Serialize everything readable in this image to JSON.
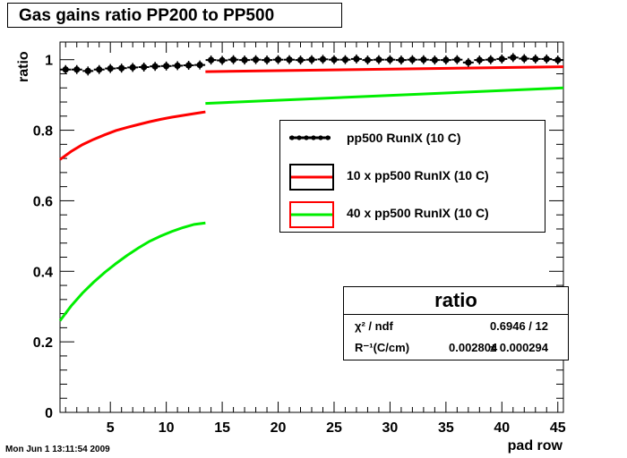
{
  "chart_data": {
    "type": "line",
    "title": "Gas gains ratio PP200 to PP500",
    "xlabel": "pad row",
    "ylabel": "ratio",
    "xlim": [
      0.5,
      45.5
    ],
    "ylim": [
      0,
      1.05
    ],
    "xticks": [
      5,
      10,
      15,
      20,
      25,
      30,
      35,
      40,
      45
    ],
    "yticks": [
      0,
      0.2,
      0.4,
      0.6,
      0.8,
      1
    ],
    "ytick_labels": [
      "0",
      "0.2",
      "0.4",
      "0.6",
      "0.8",
      "1"
    ],
    "colors": {
      "data": "#000000",
      "fit1": "#ff0000",
      "fit2": "#00ee00"
    },
    "series": [
      {
        "name": "pp500 RunIX (10 C)",
        "style": "markers-with-errors",
        "x": [
          1,
          2,
          3,
          4,
          5,
          6,
          7,
          8,
          9,
          10,
          11,
          12,
          13,
          14,
          15,
          16,
          17,
          18,
          19,
          20,
          21,
          22,
          23,
          24,
          25,
          26,
          27,
          28,
          29,
          30,
          31,
          32,
          33,
          34,
          35,
          36,
          37,
          38,
          39,
          40,
          41,
          42,
          43,
          44,
          45
        ],
        "y": [
          0.972,
          0.972,
          0.968,
          0.972,
          0.975,
          0.976,
          0.978,
          0.979,
          0.981,
          0.982,
          0.983,
          0.984,
          0.985,
          0.999,
          0.998,
          1.0,
          0.999,
          1.0,
          0.999,
          1.0,
          1.0,
          0.999,
          1.0,
          1.001,
          1.0,
          1.0,
          1.002,
          0.999,
          1.0,
          1.0,
          0.999,
          1.0,
          1.0,
          0.999,
          0.999,
          1.0,
          0.992,
          0.999,
          1.0,
          1.002,
          1.006,
          1.003,
          1.002,
          1.002,
          0.999
        ]
      },
      {
        "name": "10 x pp500 RunIX (10 C)",
        "style": "line",
        "segments": [
          {
            "x": [
              0.5,
              1.5,
              2.5,
              3.5,
              4.5,
              5.5,
              6.5,
              7.5,
              8.5,
              9.5,
              10.5,
              11.5,
              12.5,
              13.5
            ],
            "y": [
              0.717,
              0.74,
              0.759,
              0.774,
              0.787,
              0.799,
              0.808,
              0.816,
              0.824,
              0.831,
              0.837,
              0.842,
              0.847,
              0.852
            ]
          },
          {
            "x": [
              13.5,
              45.5
            ],
            "y": [
              0.966,
              0.98
            ]
          }
        ]
      },
      {
        "name": "40 x pp500 RunIX (10 C)",
        "style": "line",
        "segments": [
          {
            "x": [
              0.5,
              1.5,
              2.5,
              3.5,
              4.5,
              5.5,
              6.5,
              7.5,
              8.5,
              9.5,
              10.5,
              11.5,
              12.5,
              13.5
            ],
            "y": [
              0.26,
              0.302,
              0.338,
              0.369,
              0.397,
              0.422,
              0.445,
              0.466,
              0.485,
              0.5,
              0.513,
              0.524,
              0.533,
              0.537
            ]
          },
          {
            "x": [
              13.5,
              45.5
            ],
            "y": [
              0.876,
              0.92
            ]
          }
        ]
      }
    ]
  },
  "legend": {
    "entries": [
      {
        "label": "pp500 RunIX (10 C)",
        "border": "none",
        "line": "#000000"
      },
      {
        "label": "10 x pp500 RunIX (10 C)",
        "border": "#000000",
        "line": "#ff0000"
      },
      {
        "label": "40 x pp500 RunIX (10 C)",
        "border": "#ff0000",
        "line": "#00ee00"
      }
    ]
  },
  "stats": {
    "title": "ratio",
    "chi2_label": "χ² / ndf",
    "chi2_value": "0.6946 / 12",
    "r_label": "R⁻¹(C/cm)",
    "r_value": "0.002804",
    "r_error": "± 0.000294"
  },
  "footer": {
    "datestamp": "Mon Jun  1 13:11:54 2009"
  }
}
